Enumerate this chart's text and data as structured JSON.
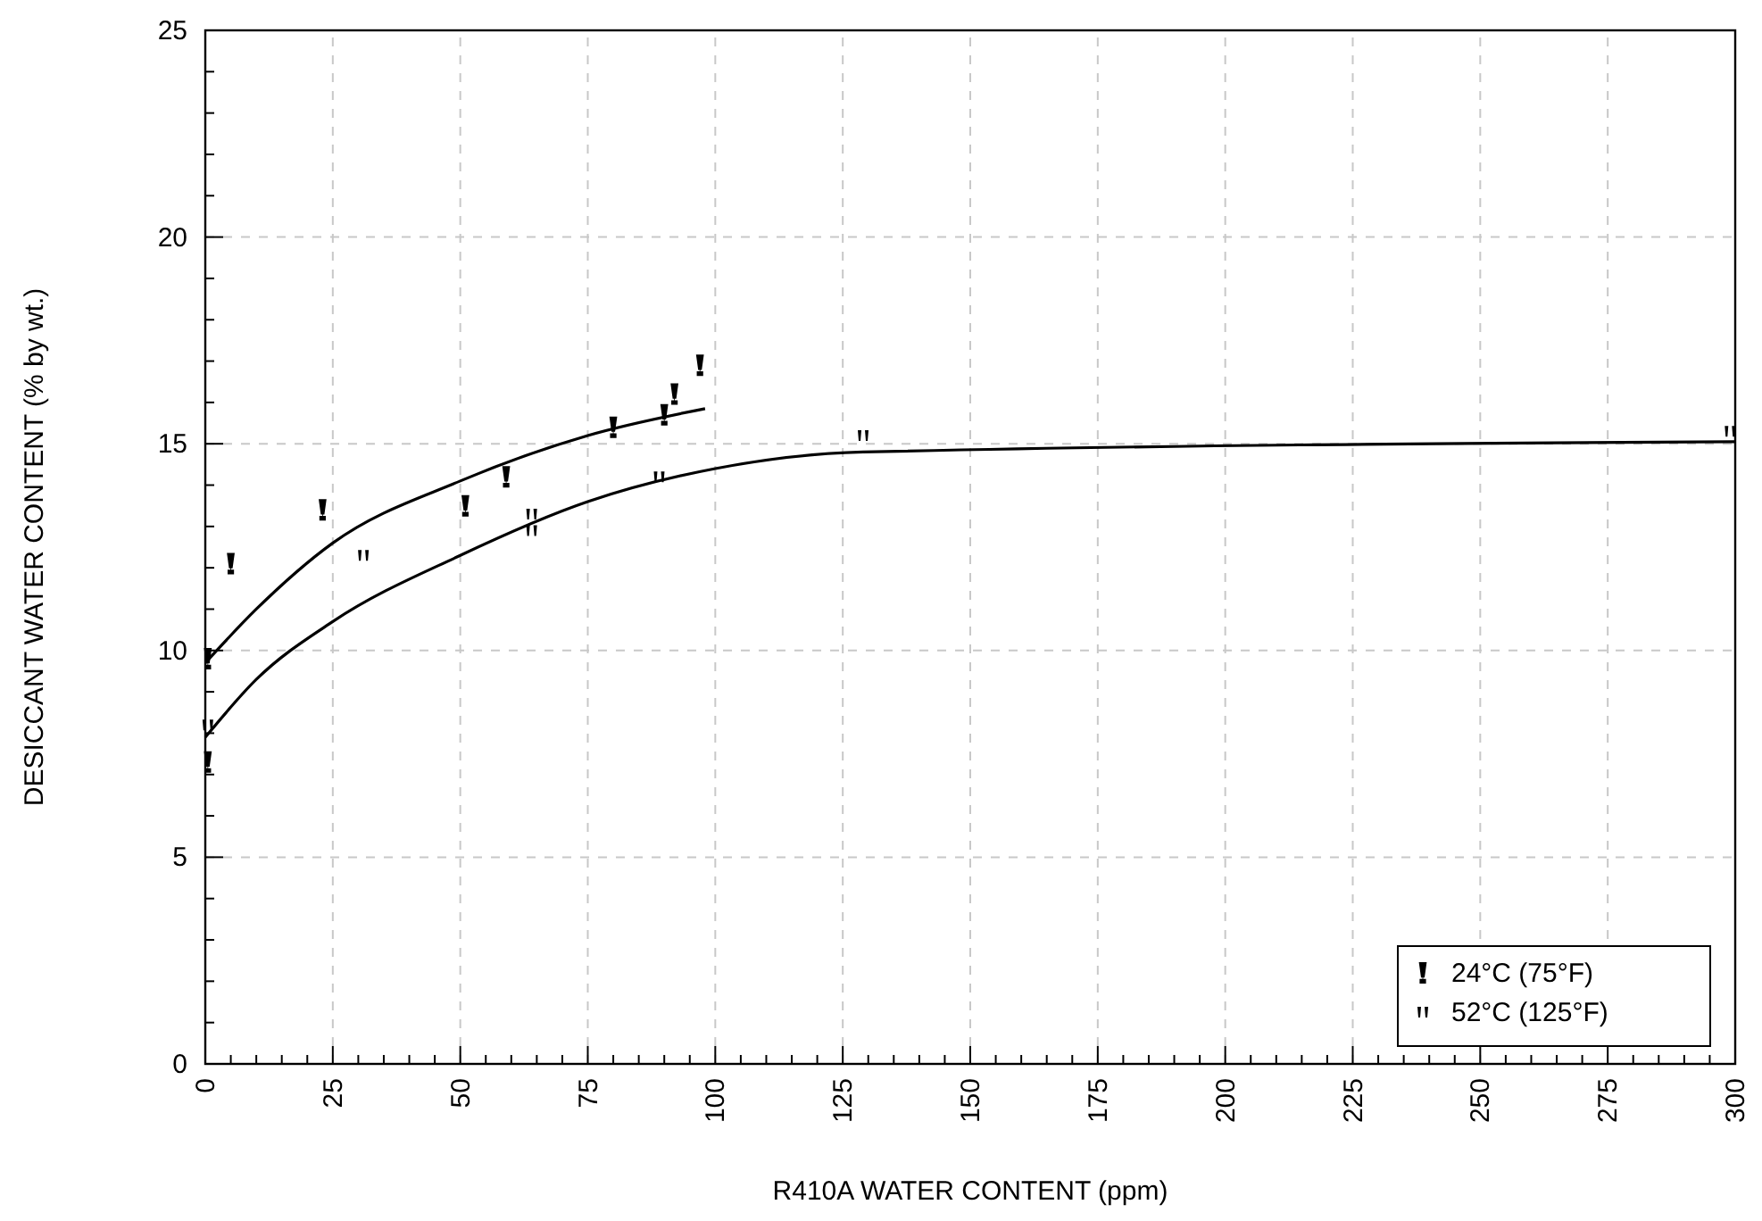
{
  "chart_data": {
    "type": "scatter",
    "xlabel": "R410A WATER CONTENT (ppm)",
    "ylabel": "DESICCANT WATER CONTENT (% by wt.)",
    "xlim": [
      0,
      300
    ],
    "ylim": [
      0,
      25
    ],
    "xticks": [
      0,
      {
        "value": 5,
        "label": null
      },
      {
        "value": 10,
        "label": null
      },
      {
        "value": 15,
        "label": null
      },
      {
        "value": 20,
        "label": null
      },
      25,
      {
        "value": 30,
        "label": null
      },
      {
        "value": 35,
        "label": null
      },
      {
        "value": 40,
        "label": null
      },
      {
        "value": 45,
        "label": null
      },
      50,
      {
        "value": 55,
        "label": null
      },
      {
        "value": 60,
        "label": null
      },
      {
        "value": 65,
        "label": null
      },
      {
        "value": 70,
        "label": null
      },
      75,
      {
        "value": 80,
        "label": null
      },
      {
        "value": 85,
        "label": null
      },
      {
        "value": 90,
        "label": null
      },
      {
        "value": 95,
        "label": null
      },
      100,
      {
        "value": 105,
        "label": null
      },
      {
        "value": 110,
        "label": null
      },
      {
        "value": 115,
        "label": null
      },
      {
        "value": 120,
        "label": null
      },
      125,
      {
        "value": 130,
        "label": null
      },
      {
        "value": 135,
        "label": null
      },
      {
        "value": 140,
        "label": null
      },
      {
        "value": 145,
        "label": null
      },
      150,
      {
        "value": 155,
        "label": null
      },
      {
        "value": 160,
        "label": null
      },
      {
        "value": 165,
        "label": null
      },
      {
        "value": 170,
        "label": null
      },
      175,
      {
        "value": 180,
        "label": null
      },
      {
        "value": 185,
        "label": null
      },
      {
        "value": 190,
        "label": null
      },
      {
        "value": 195,
        "label": null
      },
      200,
      {
        "value": 205,
        "label": null
      },
      {
        "value": 210,
        "label": null
      },
      {
        "value": 215,
        "label": null
      },
      {
        "value": 220,
        "label": null
      },
      225,
      {
        "value": 230,
        "label": null
      },
      {
        "value": 235,
        "label": null
      },
      {
        "value": 240,
        "label": null
      },
      {
        "value": 245,
        "label": null
      },
      250,
      {
        "value": 255,
        "label": null
      },
      {
        "value": 260,
        "label": null
      },
      {
        "value": 265,
        "label": null
      },
      {
        "value": 270,
        "label": null
      },
      275,
      {
        "value": 280,
        "label": null
      },
      {
        "value": 285,
        "label": null
      },
      {
        "value": 290,
        "label": null
      },
      {
        "value": 295,
        "label": null
      },
      300
    ],
    "yticks": [
      0,
      {
        "value": 1,
        "label": null
      },
      {
        "value": 2,
        "label": null
      },
      {
        "value": 3,
        "label": null
      },
      {
        "value": 4,
        "label": null
      },
      5,
      {
        "value": 6,
        "label": null
      },
      {
        "value": 7,
        "label": null
      },
      {
        "value": 8,
        "label": null
      },
      {
        "value": 9,
        "label": null
      },
      10,
      {
        "value": 11,
        "label": null
      },
      {
        "value": 12,
        "label": null
      },
      {
        "value": 13,
        "label": null
      },
      {
        "value": 14,
        "label": null
      },
      15,
      {
        "value": 16,
        "label": null
      },
      {
        "value": 17,
        "label": null
      },
      {
        "value": 18,
        "label": null
      },
      {
        "value": 19,
        "label": null
      },
      20,
      {
        "value": 21,
        "label": null
      },
      {
        "value": 22,
        "label": null
      },
      {
        "value": 23,
        "label": null
      },
      {
        "value": 24,
        "label": null
      },
      25
    ],
    "grid": true,
    "legend": "bottom right",
    "series": [
      {
        "name": "24°C (75°F)",
        "color": "#000000",
        "x": [
          0.5,
          0.5,
          5,
          23,
          51,
          59,
          80,
          90,
          92,
          97
        ],
        "values": [
          9.8,
          7.3,
          12.1,
          13.4,
          13.5,
          14.2,
          15.4,
          15.7,
          16.2,
          16.9
        ]
      },
      {
        "name": "52°C (125°F)",
        "color": "#000000",
        "x": [
          0.5,
          31,
          64,
          64,
          89,
          129,
          299
        ],
        "values": [
          8.2,
          12.3,
          13.3,
          12.9,
          14.2,
          15.2,
          15.3
        ]
      },
      {
        "type": "line",
        "color": "#000000",
        "x": [
          0,
          10,
          25,
          50,
          75,
          98
        ],
        "values": [
          9.7,
          11.0,
          12.6,
          14.1,
          15.2,
          15.85
        ]
      },
      {
        "type": "line",
        "color": "#000000",
        "x": [
          0,
          10,
          25,
          50,
          75,
          100,
          129,
          300
        ],
        "values": [
          7.9,
          9.3,
          10.7,
          12.3,
          13.6,
          14.4,
          14.8,
          15.05
        ]
      }
    ]
  }
}
